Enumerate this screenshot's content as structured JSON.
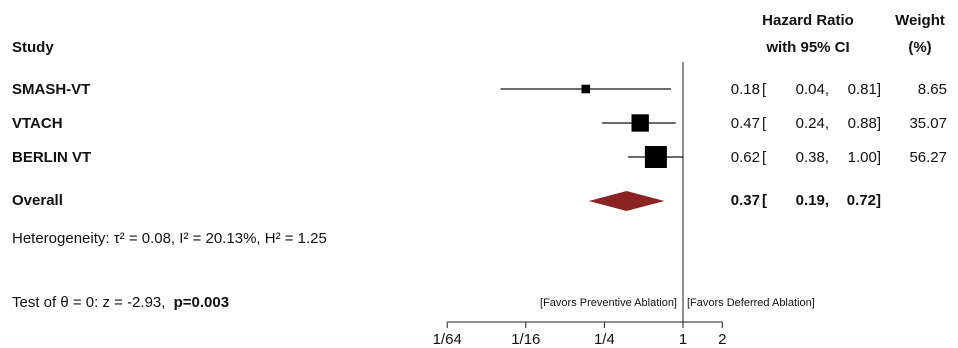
{
  "header": {
    "study": "Study",
    "hr_line1": "Hazard Ratio",
    "hr_line2": "with 95% CI",
    "weight_line1": "Weight",
    "weight_line2": "(%)"
  },
  "chart_data": {
    "type": "forest",
    "x_scale": "log2",
    "xlim": [
      0.011,
      2.4
    ],
    "ticks": [
      {
        "value": 0.015625,
        "label": "1/64"
      },
      {
        "value": 0.0625,
        "label": "1/16"
      },
      {
        "value": 0.25,
        "label": "1/4"
      },
      {
        "value": 1,
        "label": "1"
      },
      {
        "value": 2,
        "label": "2"
      }
    ],
    "null_line": 1,
    "studies": [
      {
        "name": "SMASH-VT",
        "hr": 0.18,
        "lo": 0.04,
        "hi": 0.81,
        "hr_text": "0.18",
        "lo_text": "0.04,",
        "hi_text": "0.81]",
        "weight_text": "8.65",
        "weight": 8.65
      },
      {
        "name": "VTACH",
        "hr": 0.47,
        "lo": 0.24,
        "hi": 0.88,
        "hr_text": "0.47",
        "lo_text": "0.24,",
        "hi_text": "0.88]",
        "weight_text": "35.07",
        "weight": 35.07
      },
      {
        "name": "BERLIN VT",
        "hr": 0.62,
        "lo": 0.38,
        "hi": 1.0,
        "hr_text": "0.62",
        "lo_text": "0.38,",
        "hi_text": "1.00]",
        "weight_text": "56.27",
        "weight": 56.27
      }
    ],
    "overall": {
      "name": "Overall",
      "hr": 0.37,
      "lo": 0.19,
      "hi": 0.72,
      "hr_text": "0.37",
      "lo_text": "0.19,",
      "hi_text": "0.72]"
    },
    "bracket": "[",
    "diamond_color": "#8b2323",
    "heterogeneity": "Heterogeneity: τ² = 0.08, I² = 20.13%, H² = 1.25",
    "test_label": "Test of θ = 0: z = -2.93,",
    "test_p": "p=0.003",
    "favors_left": "[Favors Preventive Ablation]",
    "favors_right": "[Favors Deferred Ablation]"
  }
}
